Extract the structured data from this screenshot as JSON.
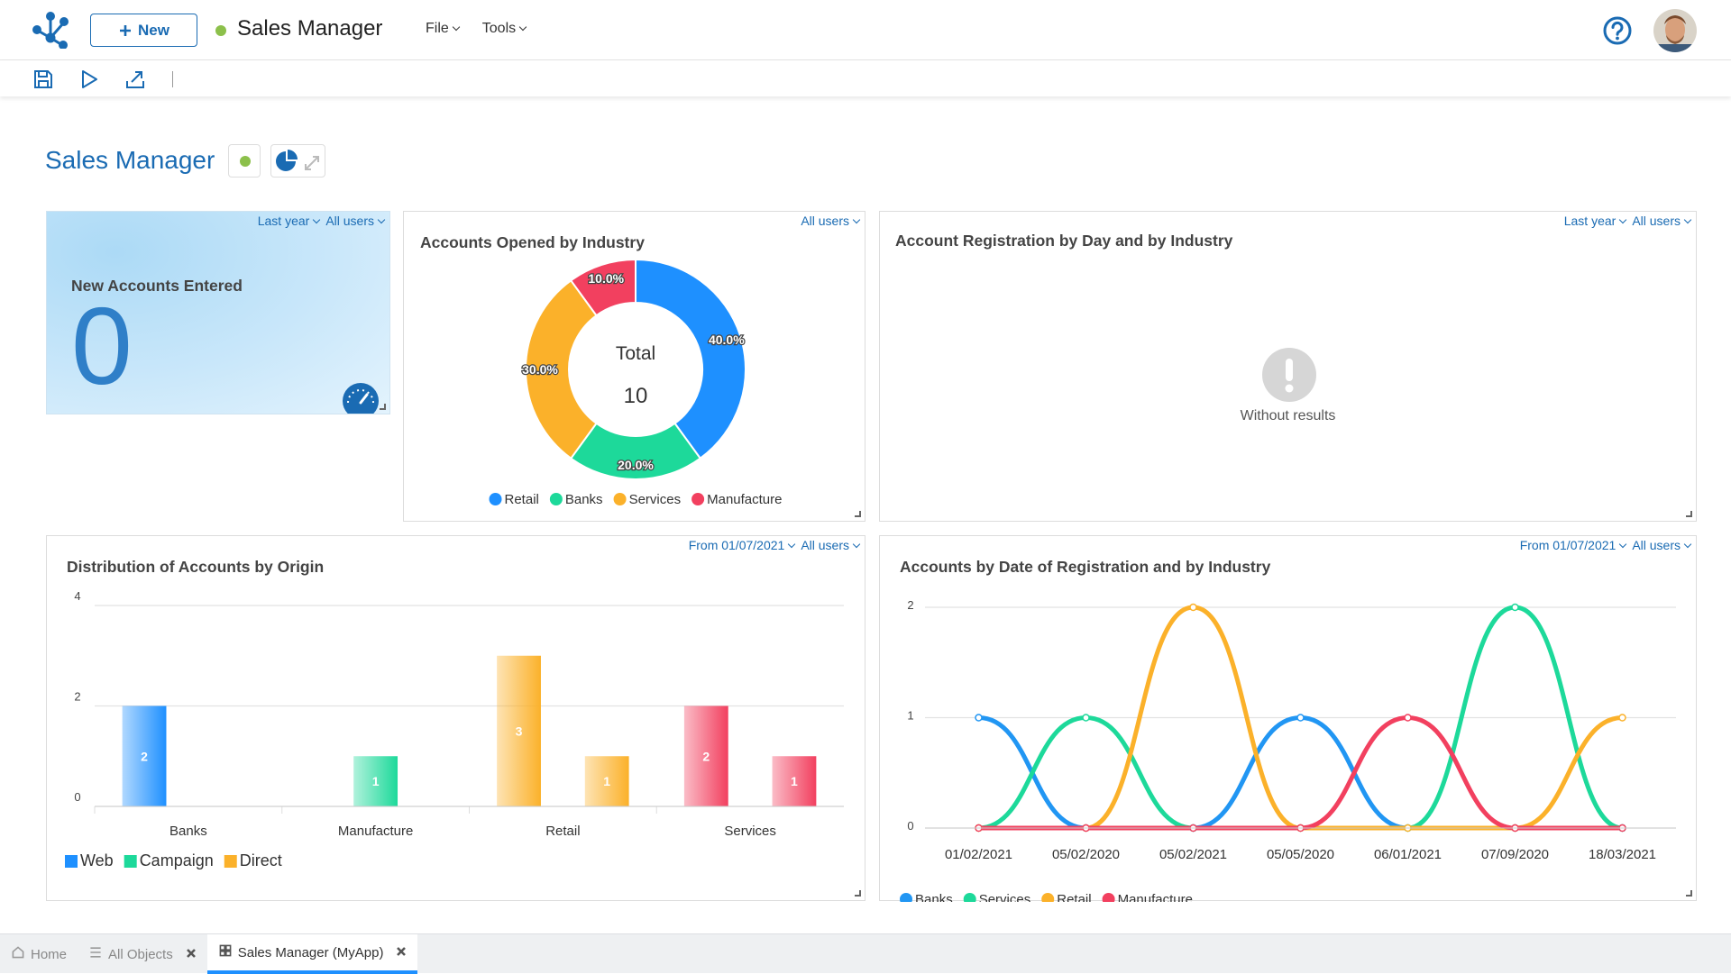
{
  "header": {
    "new_button": "New",
    "app_title": "Sales Manager",
    "menus": [
      "File",
      "Tools"
    ]
  },
  "dashboard": {
    "title": "Sales Manager"
  },
  "widgets": {
    "kpi": {
      "filters": [
        "Last year",
        "All users"
      ],
      "title": "New Accounts Entered",
      "value": 0
    },
    "accounts_by_industry": {
      "filters": [
        "All users"
      ],
      "chart": {
        "type": "donut",
        "title": "Accounts Opened by Industry",
        "center_label": "Total",
        "total": 10,
        "categories": [
          "Retail",
          "Banks",
          "Services",
          "Manufacture"
        ],
        "values": [
          40,
          20,
          30,
          10
        ],
        "value_labels": [
          "40.0%",
          "20.0%",
          "30.0%",
          "10.0%"
        ],
        "colors": [
          "#1e90ff",
          "#1dd99a",
          "#fbb12a",
          "#f2405f"
        ]
      }
    },
    "registration_by_day": {
      "filters": [
        "Last year",
        "All users"
      ],
      "title": "Account Registration by Day and by Industry",
      "message": "Without results"
    },
    "by_origin": {
      "filters": [
        "From 01/07/2021",
        "All users"
      ],
      "chart": {
        "type": "bar",
        "title": "Distribution of Accounts by Origin",
        "categories": [
          "Banks",
          "Manufacture",
          "Retail",
          "Services"
        ],
        "category_colors": [
          "#1e90ff",
          "#1dd99a",
          "#fbb12a",
          "#f2405f"
        ],
        "series": [
          {
            "name": "Web",
            "color": "#1e90ff",
            "values": [
              2,
              null,
              3,
              2
            ]
          },
          {
            "name": "Campaign",
            "color": "#1dd99a",
            "values": [
              null,
              1,
              null,
              null
            ]
          },
          {
            "name": "Direct",
            "color": "#fbb12a",
            "values": [
              null,
              null,
              1,
              1
            ]
          }
        ],
        "ylim": [
          0,
          4
        ],
        "yticks": [
          0,
          2,
          4
        ],
        "grid": true
      }
    },
    "by_date": {
      "filters": [
        "From 01/07/2021",
        "All users"
      ],
      "chart": {
        "type": "line",
        "title": "Accounts by Date of Registration and by Industry",
        "categories": [
          "01/02/2021",
          "05/02/2020",
          "05/02/2021",
          "05/05/2020",
          "06/01/2021",
          "07/09/2020",
          "18/03/2021"
        ],
        "series": [
          {
            "name": "Banks",
            "color": "#2196f3",
            "values": [
              1,
              0,
              0,
              1,
              0,
              0,
              0
            ]
          },
          {
            "name": "Services",
            "color": "#1dd99a",
            "values": [
              0,
              1,
              0,
              0,
              0,
              2,
              0
            ]
          },
          {
            "name": "Retail",
            "color": "#fbb12a",
            "values": [
              0,
              0,
              2,
              0,
              0,
              0,
              1
            ]
          },
          {
            "name": "Manufacture",
            "color": "#f2405f",
            "values": [
              0,
              0,
              0,
              0,
              1,
              0,
              0
            ]
          }
        ],
        "ylim": [
          0,
          2
        ],
        "yticks": [
          0,
          1,
          2
        ],
        "grid": true
      }
    }
  },
  "tabs": [
    "Home",
    "All Objects",
    "Sales Manager (MyApp)"
  ],
  "active_tab": 2
}
